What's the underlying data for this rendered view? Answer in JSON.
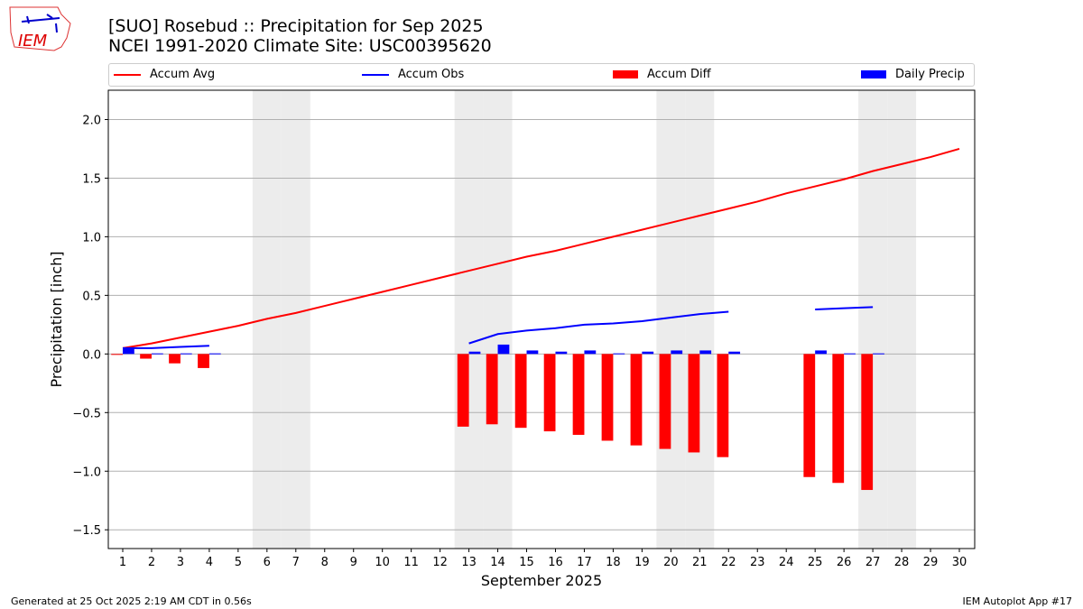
{
  "header": {
    "title1": "[SUO] Rosebud :: Precipitation for Sep 2025",
    "title2": "NCEI 1991-2020 Climate Site: USC00395620",
    "logo_text": "IEM"
  },
  "footer": {
    "left": "Generated at 25 Oct 2025 2:19 AM CDT in 0.56s",
    "right": "IEM Autoplot App #17"
  },
  "colors": {
    "avg": "#ff0000",
    "obs": "#0000ff",
    "diff": "#ff0000",
    "precip": "#0000ff",
    "weekend": "#ececec"
  },
  "chart_data": {
    "type": "bar+line",
    "xlabel": "September 2025",
    "ylabel": "Precipitation [inch]",
    "ylim": [
      -1.66,
      2.25
    ],
    "yticks": [
      -1.5,
      -1.0,
      -0.5,
      0.0,
      0.5,
      1.0,
      1.5,
      2.0
    ],
    "ytick_labels": [
      "−1.5",
      "−1.0",
      "−0.5",
      "0.0",
      "0.5",
      "1.0",
      "1.5",
      "2.0"
    ],
    "x": [
      1,
      2,
      3,
      4,
      5,
      6,
      7,
      8,
      9,
      10,
      11,
      12,
      13,
      14,
      15,
      16,
      17,
      18,
      19,
      20,
      21,
      22,
      23,
      24,
      25,
      26,
      27,
      28,
      29,
      30
    ],
    "weekend_days": [
      6,
      7,
      13,
      14,
      20,
      21,
      27,
      28
    ],
    "legend": [
      "Accum Avg",
      "Accum Obs",
      "Accum Diff",
      "Daily Precip"
    ],
    "series": [
      {
        "name": "Accum Avg",
        "type": "line",
        "values": [
          0.05,
          0.09,
          0.14,
          0.19,
          0.24,
          0.3,
          0.35,
          0.41,
          0.47,
          0.53,
          0.59,
          0.65,
          0.71,
          0.77,
          0.83,
          0.88,
          0.94,
          1.0,
          1.06,
          1.12,
          1.18,
          1.24,
          1.3,
          1.37,
          1.43,
          1.49,
          1.56,
          1.62,
          1.68,
          1.75
        ]
      },
      {
        "name": "Accum Obs",
        "type": "line",
        "values": [
          0.05,
          0.05,
          0.06,
          0.07,
          null,
          null,
          null,
          null,
          null,
          null,
          null,
          null,
          0.09,
          0.17,
          0.2,
          0.22,
          0.25,
          0.26,
          0.28,
          0.31,
          0.34,
          0.36,
          null,
          null,
          0.38,
          0.39,
          0.4,
          null,
          null,
          null
        ]
      },
      {
        "name": "Accum Diff",
        "type": "bar",
        "values": [
          0.0,
          -0.04,
          -0.08,
          -0.12,
          null,
          null,
          null,
          null,
          null,
          null,
          null,
          null,
          -0.62,
          -0.6,
          -0.63,
          -0.66,
          -0.69,
          -0.74,
          -0.78,
          -0.81,
          -0.84,
          -0.88,
          null,
          null,
          -1.05,
          -1.1,
          -1.16,
          null,
          null,
          null
        ]
      },
      {
        "name": "Daily Precip",
        "type": "bar",
        "values": [
          0.05,
          0.005,
          0.005,
          0.005,
          null,
          null,
          null,
          null,
          null,
          null,
          null,
          null,
          0.02,
          0.08,
          0.03,
          0.02,
          0.03,
          0.005,
          0.02,
          0.03,
          0.03,
          0.02,
          null,
          null,
          0.03,
          0.005,
          0.005,
          null,
          null,
          null
        ]
      }
    ]
  }
}
